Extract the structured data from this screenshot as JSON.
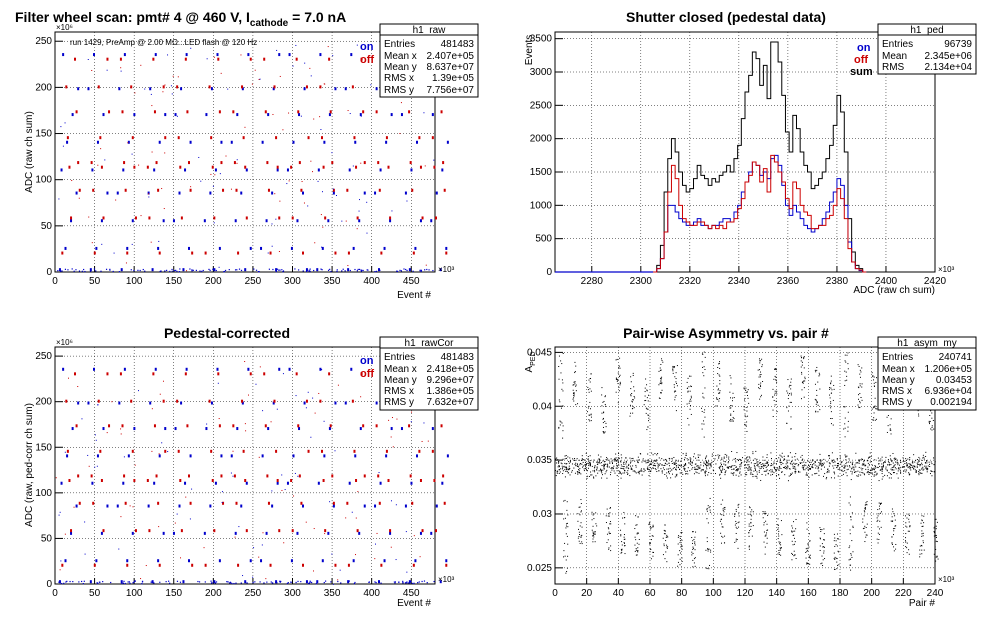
{
  "chart_data": [
    {
      "type": "scatter",
      "title": "Filter wheel scan: pmt#   4 @   460 V, I",
      "title_sub": "cathode",
      "title_tail": " = 7.0 nA",
      "xlabel": "Event #",
      "ylabel": "ADC (raw ch sum)",
      "x_exponent": "×10³",
      "y_exponent": "×10⁶",
      "xlim": [
        0,
        480
      ],
      "ylim": [
        0,
        260
      ],
      "xticks": [
        "0",
        "50",
        "100",
        "150",
        "200",
        "250",
        "300",
        "350",
        "400",
        "450"
      ],
      "yticks": [
        "0",
        "50",
        "100",
        "150",
        "200",
        "250"
      ],
      "annotation": "run 1429, PreAmp @ 2.00 MΩ...LED flash @  120 Hz",
      "legend": [
        {
          "name": "on",
          "color": "#0000cc"
        },
        {
          "name": "off",
          "color": "#cc0000"
        }
      ],
      "stats": {
        "name": "h1_raw",
        "rows": [
          {
            "label": "Entries",
            "value": "481483"
          },
          {
            "label": "Mean x",
            "value": "2.407e+05"
          },
          {
            "label": "Mean y",
            "value": "8.637e+07"
          },
          {
            "label": "RMS x",
            "value": "1.39e+05"
          },
          {
            "label": "RMS y",
            "value": "7.756e+07"
          }
        ]
      },
      "levels_on": [
        2,
        25,
        55,
        85,
        110,
        140,
        170,
        198,
        235
      ],
      "levels_off": [
        20,
        58,
        88,
        113,
        118,
        145,
        173,
        200,
        230
      ],
      "x_groups": [
        0,
        36,
        72,
        108,
        144,
        180,
        216,
        252,
        288,
        324,
        360,
        396,
        432,
        468
      ],
      "grid": true
    },
    {
      "type": "line",
      "title": "Shutter closed (pedestal data)",
      "xlabel": "ADC (raw ch sum)",
      "ylabel": "Events",
      "x_exponent": "×10³",
      "xlim": [
        2265,
        2420
      ],
      "ylim": [
        0,
        3600
      ],
      "xticks": [
        "2280",
        "2300",
        "2320",
        "2340",
        "2360",
        "2380",
        "2400",
        "2420"
      ],
      "yticks": [
        "0",
        "500",
        "1000",
        "1500",
        "2000",
        "2500",
        "3000",
        "3500"
      ],
      "legend": [
        {
          "name": "on",
          "color": "#0000cc"
        },
        {
          "name": "off",
          "color": "#cc0000"
        },
        {
          "name": "sum",
          "color": "#000000"
        }
      ],
      "stats": {
        "name": "h1_ped",
        "rows": [
          {
            "label": "Entries",
            "value": "96739"
          },
          {
            "label": "Mean",
            "value": "2.345e+06"
          },
          {
            "label": "RMS",
            "value": "2.134e+04"
          }
        ]
      },
      "bin_start": 2305,
      "bin_width": 1.5,
      "series": [
        {
          "name": "sum",
          "color": "#000000",
          "values": [
            0,
            100,
            400,
            1200,
            1700,
            2000,
            1800,
            1500,
            1300,
            1200,
            1250,
            1400,
            1600,
            1450,
            1400,
            1300,
            1400,
            1350,
            1450,
            1500,
            1600,
            1500,
            1700,
            1900,
            2300,
            2700,
            2950,
            3300,
            3200,
            2800,
            3100,
            2600,
            3450,
            3450,
            3150,
            2650,
            2100,
            1800,
            2350,
            2150,
            1800,
            1600,
            1500,
            1250,
            1300,
            1400,
            1500,
            1700,
            1900,
            2200,
            2650,
            2400,
            1800,
            800,
            300,
            100,
            50,
            0
          ]
        },
        {
          "name": "on",
          "color": "#0000cc",
          "values": [
            0,
            50,
            200,
            600,
            1000,
            1000,
            900,
            800,
            750,
            700,
            700,
            750,
            800,
            700,
            700,
            650,
            700,
            700,
            750,
            800,
            800,
            750,
            900,
            1000,
            1200,
            1350,
            1500,
            1650,
            1600,
            1450,
            1500,
            1400,
            1700,
            1750,
            1600,
            1300,
            1000,
            850,
            1000,
            900,
            800,
            700,
            650,
            600,
            650,
            700,
            800,
            900,
            1050,
            1200,
            1400,
            1300,
            1000,
            450,
            150,
            50,
            20,
            0
          ]
        },
        {
          "name": "off",
          "color": "#cc0000",
          "values": [
            0,
            50,
            200,
            600,
            1200,
            1600,
            1400,
            1000,
            800,
            750,
            700,
            700,
            750,
            750,
            700,
            650,
            700,
            650,
            700,
            650,
            750,
            750,
            800,
            950,
            1100,
            1350,
            1450,
            1650,
            1600,
            1350,
            1550,
            1200,
            1750,
            1650,
            1500,
            1350,
            1100,
            950,
            1350,
            1250,
            1000,
            900,
            850,
            650,
            650,
            700,
            700,
            800,
            850,
            1000,
            1250,
            1100,
            800,
            350,
            150,
            50,
            30,
            0
          ]
        }
      ],
      "grid": true
    },
    {
      "type": "scatter",
      "title": "Pedestal-corrected",
      "xlabel": "Event #",
      "ylabel": "ADC (raw, ped-corr ch sum)",
      "x_exponent": "×10³",
      "y_exponent": "×10⁶",
      "xlim": [
        0,
        480
      ],
      "ylim": [
        0,
        260
      ],
      "xticks": [
        "0",
        "50",
        "100",
        "150",
        "200",
        "250",
        "300",
        "350",
        "400",
        "450"
      ],
      "yticks": [
        "0",
        "50",
        "100",
        "150",
        "200",
        "250"
      ],
      "legend": [
        {
          "name": "on",
          "color": "#0000cc"
        },
        {
          "name": "off",
          "color": "#cc0000"
        }
      ],
      "stats": {
        "name": "h1_rawCor",
        "rows": [
          {
            "label": "Entries",
            "value": "481483"
          },
          {
            "label": "Mean x",
            "value": "2.418e+05"
          },
          {
            "label": "Mean y",
            "value": "9.296e+07"
          },
          {
            "label": "RMS x",
            "value": "1.386e+05"
          },
          {
            "label": "RMS y",
            "value": "7.632e+07"
          }
        ]
      },
      "levels_on": [
        2,
        25,
        55,
        85,
        110,
        140,
        170,
        198,
        235
      ],
      "levels_off": [
        20,
        58,
        88,
        113,
        118,
        145,
        173,
        200,
        230
      ],
      "x_groups": [
        0,
        36,
        72,
        108,
        144,
        180,
        216,
        252,
        288,
        324,
        360,
        396,
        432,
        468
      ],
      "grid": true
    },
    {
      "type": "scatter",
      "title": "Pair-wise Asymmetry vs. pair #",
      "xlabel": "Pair #",
      "ylabel": "A",
      "ylabel_sub": "PED",
      "x_exponent": "×10³",
      "xlim": [
        0,
        240
      ],
      "ylim": [
        0.0235,
        0.0455
      ],
      "xticks": [
        "0",
        "20",
        "40",
        "60",
        "80",
        "100",
        "120",
        "140",
        "160",
        "180",
        "200",
        "220",
        "240"
      ],
      "yticks": [
        "0.025",
        "0.03",
        "0.035",
        "0.04",
        "0.045"
      ],
      "stats": {
        "name": "h1_asym_my",
        "rows": [
          {
            "label": "Entries",
            "value": "240741"
          },
          {
            "label": "Mean x",
            "value": "1.206e+05"
          },
          {
            "label": "Mean y",
            "value": "0.03453"
          },
          {
            "label": "RMS x",
            "value": "6.936e+04"
          },
          {
            "label": "RMS y",
            "value": "0.002194"
          }
        ]
      },
      "band_center": 0.0345,
      "band_halfwidth": 0.0008,
      "upper_range": [
        0.037,
        0.0452
      ],
      "lower_range": [
        0.0245,
        0.0318
      ],
      "flash_pairs": [
        0,
        9,
        18,
        27,
        36,
        45,
        54,
        63,
        72,
        81,
        90,
        99,
        108,
        117,
        126,
        135,
        144,
        153,
        162,
        171,
        180,
        189,
        198,
        207,
        216,
        225,
        234
      ],
      "grid": true
    }
  ]
}
